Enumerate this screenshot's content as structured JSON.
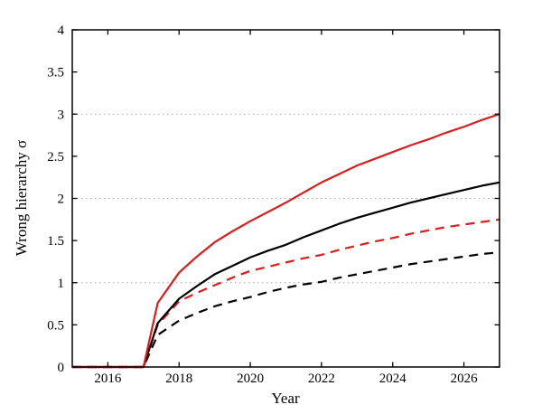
{
  "figure": {
    "background": "#ffffff"
  },
  "chart_data": {
    "type": "line",
    "title": "",
    "xlabel": "Year",
    "ylabel": "Wrong hierarchy σ",
    "xlim": [
      2015,
      2027
    ],
    "ylim": [
      0,
      4
    ],
    "x_ticks": [
      2016,
      2018,
      2020,
      2022,
      2024,
      2026
    ],
    "y_ticks": [
      0,
      0.5,
      1,
      1.5,
      2,
      2.5,
      3,
      3.5,
      4
    ],
    "gridlines_y": [
      1,
      2,
      3
    ],
    "grid_on": true,
    "grid_style": "dotted",
    "legend_position": "none",
    "colors": {
      "axis": "#000000",
      "grid": "#a8a8a8",
      "red_series": "#dd1c1c",
      "black_series": "#000000"
    },
    "x": [
      2015,
      2016,
      2017,
      2017.4,
      2018,
      2018.5,
      2019,
      2019.5,
      2020,
      2020.5,
      2021,
      2021.5,
      2022,
      2022.5,
      2023,
      2023.5,
      2024,
      2024.5,
      2025,
      2025.5,
      2026,
      2026.5,
      2027
    ],
    "series": [
      {
        "name": "black-dashed",
        "color": "#000000",
        "dash": "dashed",
        "values": [
          0,
          0,
          0,
          0.38,
          0.55,
          0.64,
          0.72,
          0.78,
          0.83,
          0.89,
          0.94,
          0.98,
          1.01,
          1.06,
          1.1,
          1.14,
          1.18,
          1.22,
          1.25,
          1.28,
          1.31,
          1.34,
          1.36
        ]
      },
      {
        "name": "red-dashed",
        "color": "#dd1c1c",
        "dash": "dashed",
        "values": [
          0,
          0,
          0,
          0.5,
          0.78,
          0.88,
          0.97,
          1.06,
          1.14,
          1.19,
          1.24,
          1.29,
          1.33,
          1.39,
          1.44,
          1.49,
          1.53,
          1.58,
          1.62,
          1.66,
          1.69,
          1.72,
          1.75
        ]
      },
      {
        "name": "black-solid",
        "color": "#000000",
        "dash": "solid",
        "values": [
          0,
          0,
          0,
          0.52,
          0.81,
          0.96,
          1.1,
          1.2,
          1.3,
          1.38,
          1.45,
          1.54,
          1.62,
          1.7,
          1.77,
          1.83,
          1.89,
          1.95,
          2.0,
          2.05,
          2.1,
          2.15,
          2.19
        ]
      },
      {
        "name": "red-solid",
        "color": "#dd1c1c",
        "dash": "solid",
        "values": [
          0,
          0,
          0,
          0.76,
          1.12,
          1.31,
          1.48,
          1.61,
          1.73,
          1.84,
          1.95,
          2.07,
          2.19,
          2.29,
          2.39,
          2.47,
          2.55,
          2.63,
          2.7,
          2.78,
          2.85,
          2.93,
          3.0
        ]
      }
    ]
  }
}
